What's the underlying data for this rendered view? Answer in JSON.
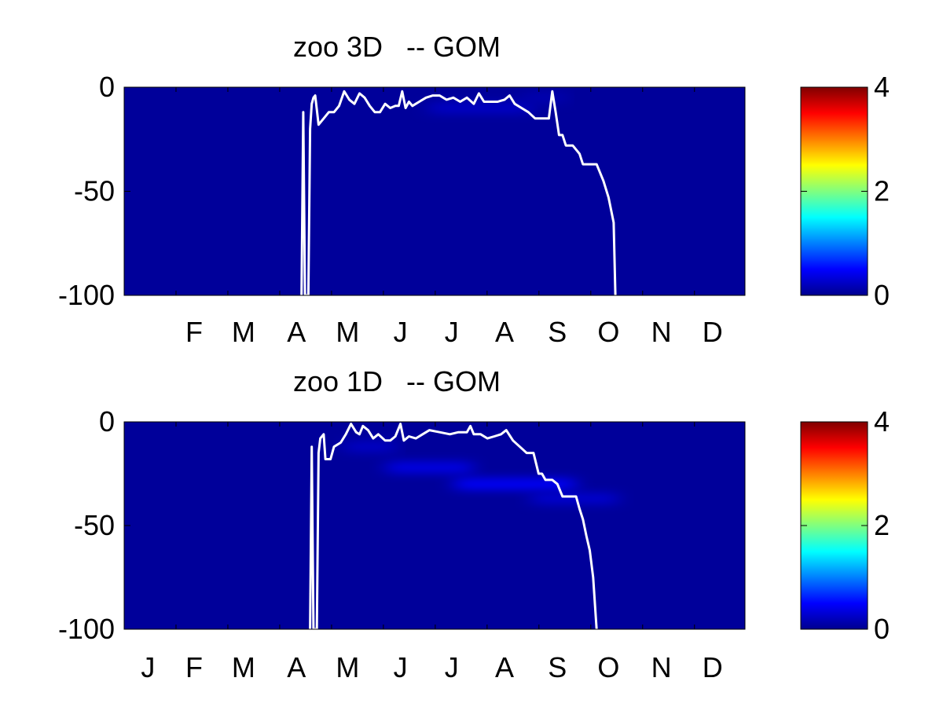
{
  "chart_data": [
    {
      "type": "heatmap",
      "title": "zoo 3D   -- GOM",
      "xlabel": "",
      "ylabel": "",
      "x_tick_labels": [
        "F",
        "M",
        "A",
        "M",
        "J",
        "J",
        "A",
        "S",
        "O",
        "N",
        "D"
      ],
      "x_tick_days": [
        42,
        71,
        102,
        132,
        163,
        193,
        224,
        255,
        285,
        316,
        346
      ],
      "xlim": [
        1,
        365
      ],
      "ylim": [
        -100,
        0
      ],
      "y_ticks": [
        0,
        -50,
        -100
      ],
      "y_tick_labels": [
        "0",
        "-50",
        "-100"
      ],
      "colorbar": {
        "colormap": "jet",
        "range": [
          0,
          4
        ],
        "ticks": [
          0,
          2,
          4
        ],
        "tick_labels": [
          "0",
          "2",
          "4"
        ]
      },
      "background_value": 0.05,
      "hotspots": [
        {
          "day_start": 180,
          "day_end": 240,
          "depth": -10,
          "value": 0.25
        },
        {
          "day_start": 235,
          "day_end": 260,
          "depth": -5,
          "value": 0.15
        }
      ],
      "line": {
        "name": "mixed layer depth",
        "color": "#ffffff",
        "points": [
          [
            105,
            -100
          ],
          [
            106,
            -12
          ],
          [
            107,
            -100
          ],
          [
            109,
            -100
          ],
          [
            110,
            -20
          ],
          [
            111,
            -8
          ],
          [
            112,
            -5
          ],
          [
            113,
            -4
          ],
          [
            115,
            -18
          ],
          [
            118,
            -15
          ],
          [
            121,
            -12
          ],
          [
            124,
            -12
          ],
          [
            127,
            -9
          ],
          [
            130,
            -2
          ],
          [
            133,
            -6
          ],
          [
            136,
            -8
          ],
          [
            139,
            -3
          ],
          [
            142,
            -5
          ],
          [
            145,
            -9
          ],
          [
            148,
            -12
          ],
          [
            151,
            -12
          ],
          [
            154,
            -8
          ],
          [
            157,
            -10
          ],
          [
            160,
            -9
          ],
          [
            162,
            -9
          ],
          [
            164,
            -2
          ],
          [
            166,
            -10
          ],
          [
            168,
            -7
          ],
          [
            170,
            -9
          ],
          [
            174,
            -7
          ],
          [
            178,
            -5
          ],
          [
            182,
            -4
          ],
          [
            186,
            -4
          ],
          [
            190,
            -6
          ],
          [
            194,
            -5
          ],
          [
            198,
            -7
          ],
          [
            202,
            -5
          ],
          [
            206,
            -8
          ],
          [
            209,
            -3
          ],
          [
            212,
            -7
          ],
          [
            216,
            -7
          ],
          [
            220,
            -7
          ],
          [
            224,
            -6
          ],
          [
            227,
            -4
          ],
          [
            230,
            -8
          ],
          [
            234,
            -10
          ],
          [
            238,
            -12
          ],
          [
            242,
            -15
          ],
          [
            246,
            -15
          ],
          [
            250,
            -15
          ],
          [
            252,
            -2
          ],
          [
            254,
            -12
          ],
          [
            256,
            -23
          ],
          [
            258,
            -23
          ],
          [
            260,
            -28
          ],
          [
            264,
            -28
          ],
          [
            268,
            -32
          ],
          [
            270,
            -37
          ],
          [
            274,
            -37
          ],
          [
            278,
            -37
          ],
          [
            282,
            -45
          ],
          [
            285,
            -53
          ],
          [
            288,
            -65
          ],
          [
            289,
            -100
          ]
        ]
      }
    },
    {
      "type": "heatmap",
      "title": "zoo 1D   -- GOM",
      "xlabel": "",
      "ylabel": "",
      "x_tick_labels": [
        "J",
        "F",
        "M",
        "A",
        "M",
        "J",
        "J",
        "A",
        "S",
        "O",
        "N",
        "D"
      ],
      "x_tick_days": [
        15,
        42,
        71,
        102,
        132,
        163,
        193,
        224,
        255,
        285,
        316,
        346
      ],
      "xlim": [
        1,
        365
      ],
      "ylim": [
        -100,
        0
      ],
      "y_ticks": [
        0,
        -50,
        -100
      ],
      "y_tick_labels": [
        "0",
        "-50",
        "-100"
      ],
      "colorbar": {
        "colormap": "jet",
        "range": [
          0,
          4
        ],
        "ticks": [
          0,
          2,
          4
        ],
        "tick_labels": [
          "0",
          "2",
          "4"
        ]
      },
      "background_value": 0.05,
      "hotspots": [
        {
          "day_start": 130,
          "day_end": 160,
          "depth": -12,
          "value": 0.25
        },
        {
          "day_start": 155,
          "day_end": 205,
          "depth": -22,
          "value": 0.4
        },
        {
          "day_start": 195,
          "day_end": 265,
          "depth": -30,
          "value": 0.5
        },
        {
          "day_start": 240,
          "day_end": 290,
          "depth": -37,
          "value": 0.3
        }
      ],
      "line": {
        "name": "mixed layer depth",
        "color": "#ffffff",
        "points": [
          [
            110,
            -100
          ],
          [
            111,
            -12
          ],
          [
            112,
            -100
          ],
          [
            114,
            -100
          ],
          [
            115,
            -15
          ],
          [
            116,
            -8
          ],
          [
            118,
            -6
          ],
          [
            119,
            -18
          ],
          [
            122,
            -18
          ],
          [
            124,
            -12
          ],
          [
            128,
            -10
          ],
          [
            131,
            -6
          ],
          [
            134,
            -1
          ],
          [
            137,
            -5
          ],
          [
            139,
            -6
          ],
          [
            141,
            -2
          ],
          [
            144,
            -4
          ],
          [
            147,
            -8
          ],
          [
            150,
            -6
          ],
          [
            154,
            -9
          ],
          [
            157,
            -9
          ],
          [
            160,
            -7
          ],
          [
            163,
            -1
          ],
          [
            165,
            -9
          ],
          [
            168,
            -7
          ],
          [
            172,
            -8
          ],
          [
            176,
            -6
          ],
          [
            180,
            -4
          ],
          [
            186,
            -5
          ],
          [
            192,
            -6
          ],
          [
            197,
            -5
          ],
          [
            202,
            -5
          ],
          [
            204,
            -2
          ],
          [
            206,
            -6
          ],
          [
            210,
            -6
          ],
          [
            214,
            -8
          ],
          [
            218,
            -7
          ],
          [
            222,
            -6
          ],
          [
            225,
            -4
          ],
          [
            229,
            -9
          ],
          [
            233,
            -12
          ],
          [
            237,
            -15
          ],
          [
            241,
            -15
          ],
          [
            244,
            -25
          ],
          [
            246,
            -25
          ],
          [
            248,
            -28
          ],
          [
            252,
            -28
          ],
          [
            255,
            -30
          ],
          [
            258,
            -36
          ],
          [
            262,
            -36
          ],
          [
            266,
            -36
          ],
          [
            268,
            -42
          ],
          [
            270,
            -47
          ],
          [
            272,
            -55
          ],
          [
            274,
            -62
          ],
          [
            276,
            -75
          ],
          [
            278,
            -100
          ]
        ]
      }
    }
  ]
}
